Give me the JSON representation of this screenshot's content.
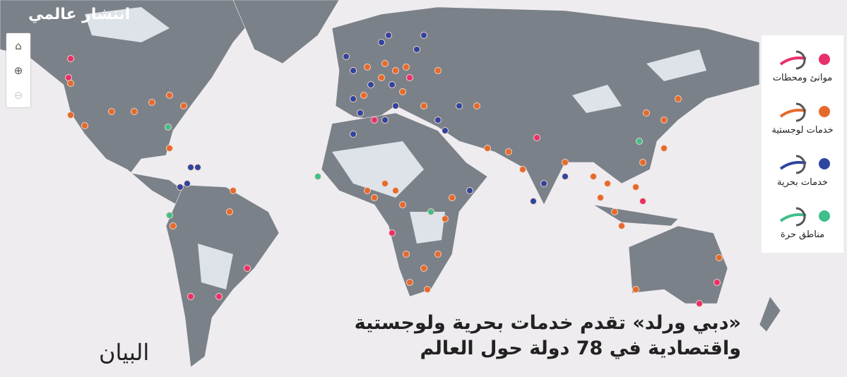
{
  "header": {
    "title": "انتشار عالمي"
  },
  "controls": {
    "home_icon": "home-icon",
    "zoom_in_icon": "zoom-in-icon",
    "zoom_out_icon": "zoom-out-icon"
  },
  "legend": [
    {
      "label": "موانئ ومحطات",
      "color": "#e8306a"
    },
    {
      "label": "خدمات لوجستية",
      "color": "#e46a2c"
    },
    {
      "label": "خدمات بحرية",
      "color": "#2e45a0"
    },
    {
      "label": "مناطق حرة",
      "color": "#3fbf8a"
    }
  ],
  "colors": {
    "sea": "#efecef",
    "land": "#7b8189",
    "highlight_land": "#dde3e8"
  },
  "headline": {
    "line1": "«دبي ورلد» تقدم خدمات بحرية ولوجستية",
    "line2": "واقتصادية في 78 دولة حول العالم"
  },
  "brand": {
    "logo_text": "البيان"
  }
}
